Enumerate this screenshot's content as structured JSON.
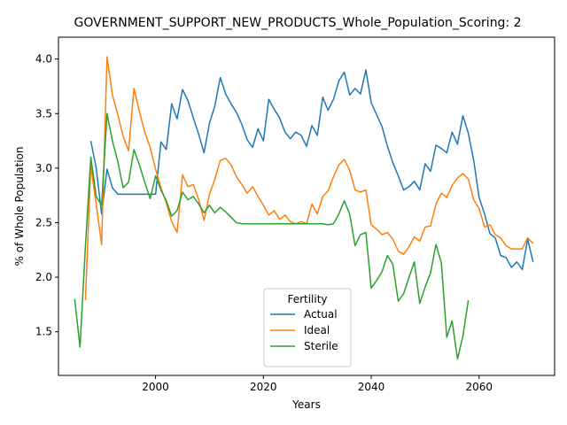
{
  "chart_data": {
    "type": "line",
    "title": "GOVERNMENT_SUPPORT_NEW_PRODUCTS_Whole_Population_Scoring: 2",
    "xlabel": "Years",
    "ylabel": "% of Whole Population",
    "xlim": [
      1982,
      2074
    ],
    "ylim": [
      1.1,
      4.2
    ],
    "xticks": [
      2000,
      2020,
      2040,
      2060
    ],
    "yticks": [
      1.5,
      2.0,
      2.5,
      3.0,
      3.5,
      4.0
    ],
    "xtick_labels": [
      "2000",
      "2020",
      "2040",
      "2060"
    ],
    "ytick_labels": [
      "1.5",
      "2.0",
      "2.5",
      "3.0",
      "3.5",
      "4.0"
    ],
    "grid": false,
    "legend": {
      "title": "Fertility",
      "placement": "lower center"
    },
    "series": [
      {
        "name": "Actual",
        "color": "#1f77b4",
        "x": [
          1988,
          1989,
          1990,
          1991,
          1992,
          1993,
          1994,
          1995,
          1996,
          1997,
          1998,
          1999,
          2000,
          2001,
          2002,
          2003,
          2004,
          2005,
          2006,
          2007,
          2008,
          2009,
          2010,
          2011,
          2012,
          2013,
          2014,
          2015,
          2016,
          2017,
          2018,
          2019,
          2020,
          2021,
          2022,
          2023,
          2024,
          2025,
          2026,
          2027,
          2028,
          2029,
          2030,
          2031,
          2032,
          2033,
          2034,
          2035,
          2036,
          2037,
          2038,
          2039,
          2040,
          2041,
          2042,
          2043,
          2044,
          2045,
          2046,
          2047,
          2048,
          2049,
          2050,
          2051,
          2052,
          2053,
          2054,
          2055,
          2056,
          2057,
          2058,
          2059,
          2060,
          2061,
          2062,
          2063,
          2064,
          2065,
          2066,
          2067,
          2068,
          2069,
          2070
        ],
        "values": [
          3.25,
          3.0,
          2.58,
          2.99,
          2.82,
          2.76,
          2.76,
          2.76,
          2.76,
          2.76,
          2.76,
          2.76,
          2.76,
          3.24,
          3.17,
          3.59,
          3.45,
          3.72,
          3.62,
          3.46,
          3.31,
          3.14,
          3.41,
          3.57,
          3.83,
          3.68,
          3.59,
          3.51,
          3.4,
          3.26,
          3.19,
          3.36,
          3.25,
          3.63,
          3.54,
          3.46,
          3.33,
          3.27,
          3.33,
          3.3,
          3.2,
          3.39,
          3.3,
          3.65,
          3.53,
          3.63,
          3.8,
          3.88,
          3.67,
          3.73,
          3.68,
          3.9,
          3.6,
          3.49,
          3.38,
          3.2,
          3.05,
          2.93,
          2.8,
          2.83,
          2.88,
          2.8,
          3.04,
          2.97,
          3.21,
          3.18,
          3.14,
          3.33,
          3.22,
          3.48,
          3.32,
          3.07,
          2.73,
          2.58,
          2.4,
          2.36,
          2.2,
          2.18,
          2.09,
          2.14,
          2.07,
          2.35,
          2.14
        ]
      },
      {
        "name": "Ideal",
        "color": "#ff7f0e",
        "x": [
          1987,
          1988,
          1989,
          1990,
          1991,
          1992,
          1993,
          1994,
          1995,
          1996,
          1997,
          1998,
          1999,
          2000,
          2001,
          2002,
          2003,
          2004,
          2005,
          2006,
          2007,
          2008,
          2009,
          2010,
          2011,
          2012,
          2013,
          2014,
          2015,
          2016,
          2017,
          2018,
          2019,
          2020,
          2021,
          2022,
          2023,
          2024,
          2025,
          2026,
          2027,
          2028,
          2029,
          2030,
          2031,
          2032,
          2033,
          2034,
          2035,
          2036,
          2037,
          2038,
          2039,
          2040,
          2041,
          2042,
          2043,
          2044,
          2045,
          2046,
          2047,
          2048,
          2049,
          2050,
          2051,
          2052,
          2053,
          2054,
          2055,
          2056,
          2057,
          2058,
          2059,
          2060,
          2061,
          2062,
          2063,
          2064,
          2065,
          2066,
          2067,
          2068,
          2069,
          2070
        ],
        "values": [
          1.79,
          3.02,
          2.67,
          2.3,
          4.02,
          3.67,
          3.49,
          3.29,
          3.16,
          3.73,
          3.52,
          3.33,
          3.19,
          2.99,
          2.82,
          2.68,
          2.51,
          2.41,
          2.94,
          2.83,
          2.85,
          2.71,
          2.52,
          2.76,
          2.9,
          3.07,
          3.09,
          3.03,
          2.92,
          2.85,
          2.77,
          2.83,
          2.74,
          2.66,
          2.57,
          2.61,
          2.53,
          2.57,
          2.51,
          2.49,
          2.51,
          2.49,
          2.67,
          2.58,
          2.74,
          2.79,
          2.92,
          3.03,
          3.08,
          2.98,
          2.8,
          2.78,
          2.8,
          2.48,
          2.44,
          2.39,
          2.41,
          2.35,
          2.24,
          2.21,
          2.28,
          2.37,
          2.33,
          2.46,
          2.47,
          2.67,
          2.77,
          2.73,
          2.84,
          2.91,
          2.95,
          2.9,
          2.71,
          2.63,
          2.46,
          2.48,
          2.39,
          2.36,
          2.29,
          2.26,
          2.26,
          2.26,
          2.36,
          2.31
        ]
      },
      {
        "name": "Sterile",
        "color": "#2ca02c",
        "x": [
          1985,
          1986,
          1987,
          1988,
          1989,
          1990,
          1991,
          1992,
          1993,
          1994,
          1995,
          1996,
          1997,
          1998,
          1999,
          2000,
          2001,
          2002,
          2003,
          2004,
          2005,
          2006,
          2007,
          2008,
          2009,
          2010,
          2011,
          2012,
          2013,
          2014,
          2015,
          2016,
          2017,
          2018,
          2019,
          2020,
          2021,
          2022,
          2023,
          2024,
          2025,
          2026,
          2027,
          2028,
          2029,
          2030,
          2031,
          2032,
          2033,
          2034,
          2035,
          2036,
          2037,
          2038,
          2039,
          2040,
          2041,
          2042,
          2043,
          2044,
          2045,
          2046,
          2047,
          2048,
          2049,
          2050,
          2051,
          2052,
          2053,
          2054,
          2055,
          2056,
          2057,
          2058
        ],
        "values": [
          1.8,
          1.36,
          2.28,
          3.1,
          2.74,
          2.66,
          3.5,
          3.25,
          3.06,
          2.82,
          2.87,
          3.17,
          3.03,
          2.87,
          2.72,
          2.93,
          2.8,
          2.7,
          2.56,
          2.61,
          2.78,
          2.71,
          2.74,
          2.67,
          2.59,
          2.66,
          2.59,
          2.64,
          2.6,
          2.55,
          2.5,
          2.49,
          2.49,
          2.49,
          2.49,
          2.49,
          2.49,
          2.49,
          2.49,
          2.49,
          2.49,
          2.49,
          2.49,
          2.49,
          2.49,
          2.49,
          2.49,
          2.48,
          2.49,
          2.58,
          2.7,
          2.58,
          2.29,
          2.39,
          2.41,
          1.9,
          1.97,
          2.05,
          2.2,
          2.12,
          1.78,
          1.85,
          2.0,
          2.14,
          1.76,
          1.91,
          2.04,
          2.3,
          2.13,
          1.45,
          1.6,
          1.25,
          1.46,
          1.79
        ]
      }
    ]
  }
}
